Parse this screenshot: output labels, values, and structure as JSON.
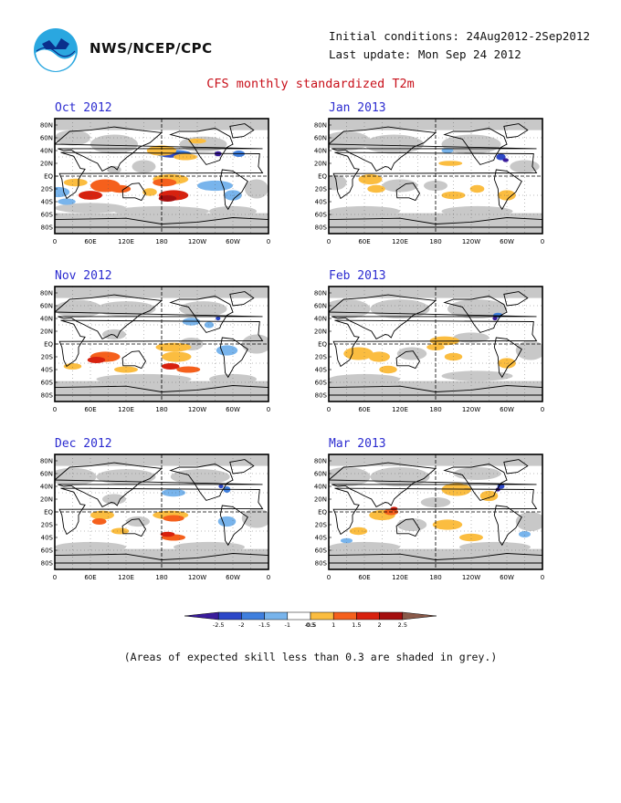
{
  "header": {
    "agency": "NWS/NCEP/CPC",
    "initial_conditions": "Initial conditions: 24Aug2012-2Sep2012",
    "last_update": "Last update: Mon Sep 24 2012",
    "title": "CFS monthly standardized T2m"
  },
  "axes": {
    "lat_labels": [
      "80N",
      "60N",
      "40N",
      "20N",
      "EQ",
      "20S",
      "40S",
      "60S",
      "80S"
    ],
    "lon_labels": [
      "0",
      "60E",
      "120E",
      "180",
      "120W",
      "60W",
      "0"
    ]
  },
  "panels": [
    {
      "label": "Oct 2012"
    },
    {
      "label": "Jan 2013"
    },
    {
      "label": "Nov 2012"
    },
    {
      "label": "Feb 2013"
    },
    {
      "label": "Dec 2012"
    },
    {
      "label": "Mar 2013"
    }
  ],
  "colorbar": {
    "colors": [
      "#3a1c9c",
      "#2c47c8",
      "#3f7fde",
      "#78b4ec",
      "#ffffff",
      "#fbbd40",
      "#f5601c",
      "#d8210e",
      "#a50f0f",
      "#8a5a4a"
    ],
    "tick_labels": [
      "-2.5",
      "-2",
      "-1.5",
      "-1",
      "-0.5",
      "0.5",
      "1",
      "1.5",
      "2",
      "2.5"
    ]
  },
  "footnote": "(Areas of expected skill less than 0.3 are shaded in grey.)",
  "legend_meaning": {
    "grey": "#c8c8c8"
  }
}
